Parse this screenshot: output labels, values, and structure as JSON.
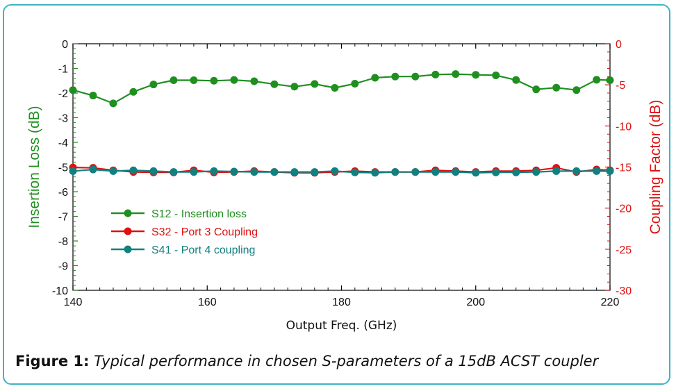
{
  "colors": {
    "frame": "#3db4c3",
    "s12": "#1f8f1f",
    "s32": "#e01010",
    "s41": "#118080",
    "left_axis": "#1f8f1f",
    "right_axis": "#e01010"
  },
  "caption": {
    "label": "Figure 1:",
    "text": "Typical performance in chosen S-parameters of a 15dB ACST coupler"
  },
  "chart_data": {
    "type": "line",
    "title": "",
    "xlabel": "Output Freq. (GHz)",
    "ylabel": "Insertion Loss (dB)",
    "y2label": "Coupling Factor (dB)",
    "xlim": [
      140,
      220
    ],
    "ylim": [
      -10,
      0
    ],
    "y2lim": [
      -30,
      0
    ],
    "xticks": [
      "140",
      "160",
      "180",
      "200",
      "220"
    ],
    "yticks": [
      "0",
      "-1",
      "-2",
      "-3",
      "-4",
      "-5",
      "-6",
      "-7",
      "-8",
      "-9",
      "-10"
    ],
    "y2ticks": [
      "0",
      "-5",
      "-10",
      "-15",
      "-20",
      "-25",
      "-30"
    ],
    "grid": false,
    "legend": "center-left",
    "x": [
      140,
      143,
      146,
      149,
      152,
      155,
      158,
      161,
      164,
      167,
      170,
      173,
      176,
      179,
      182,
      185,
      188,
      191,
      194,
      197,
      200,
      203,
      206,
      209,
      212,
      215,
      218,
      220
    ],
    "series": [
      {
        "name": "S12 - Insertion loss",
        "axis": "left",
        "values": [
          -1.88,
          -2.1,
          -2.42,
          -1.95,
          -1.65,
          -1.48,
          -1.48,
          -1.5,
          -1.47,
          -1.52,
          -1.64,
          -1.74,
          -1.63,
          -1.79,
          -1.62,
          -1.38,
          -1.33,
          -1.33,
          -1.25,
          -1.23,
          -1.26,
          -1.28,
          -1.47,
          -1.85,
          -1.78,
          -1.88,
          -1.46,
          -1.48
        ]
      },
      {
        "name": "S32 - Port 3 Coupling",
        "axis": "right",
        "values": [
          -15.05,
          -15.1,
          -15.4,
          -15.6,
          -15.65,
          -15.65,
          -15.4,
          -15.65,
          -15.6,
          -15.5,
          -15.6,
          -15.7,
          -15.7,
          -15.6,
          -15.5,
          -15.6,
          -15.6,
          -15.6,
          -15.4,
          -15.5,
          -15.6,
          -15.5,
          -15.5,
          -15.4,
          -15.1,
          -15.6,
          -15.3,
          -15.4
        ]
      },
      {
        "name": "S41 - Port 4 coupling",
        "axis": "right",
        "values": [
          -15.5,
          -15.3,
          -15.5,
          -15.4,
          -15.5,
          -15.6,
          -15.6,
          -15.5,
          -15.55,
          -15.6,
          -15.6,
          -15.6,
          -15.6,
          -15.5,
          -15.65,
          -15.7,
          -15.6,
          -15.6,
          -15.6,
          -15.6,
          -15.7,
          -15.65,
          -15.65,
          -15.6,
          -15.5,
          -15.5,
          -15.5,
          -15.5
        ]
      }
    ]
  }
}
